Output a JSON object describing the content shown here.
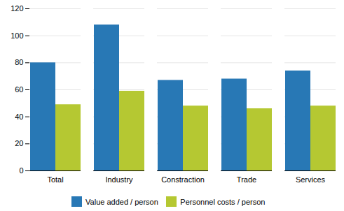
{
  "chart_data": {
    "type": "bar",
    "categories": [
      "Total",
      "Industry",
      "Constraction",
      "Trade",
      "Services"
    ],
    "series": [
      {
        "name": "Value added / person",
        "color": "#2878b5",
        "values": [
          80,
          108,
          67,
          68,
          74
        ]
      },
      {
        "name": "Personnel costs / person",
        "color": "#b5c832",
        "values": [
          49,
          59,
          48,
          46,
          48
        ]
      }
    ],
    "ylim": [
      0,
      120
    ],
    "yticks": [
      0,
      20,
      40,
      60,
      80,
      100,
      120
    ],
    "grid": true,
    "legend": "bottom"
  }
}
